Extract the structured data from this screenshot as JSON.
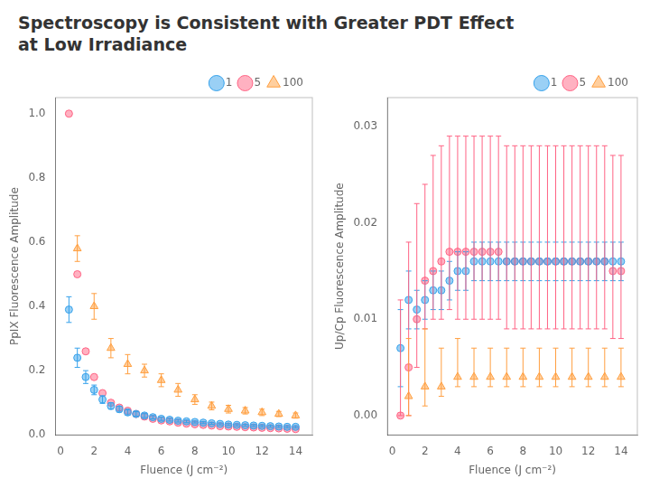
{
  "chart_data": [
    {
      "type": "scatter",
      "title": "Spectroscopy is Consistent with Greater PDT Effect\nat Low Irradiance",
      "x_label": "Fluence (J cm⁻²)",
      "y_label": "PpIX Fluorescence Amplitude",
      "xlim": [
        -0.3,
        15
      ],
      "xticks": [
        0,
        2,
        4,
        6,
        8,
        10,
        12,
        14
      ],
      "ylim": [
        0,
        1.05
      ],
      "yticks": [
        {
          "value": 0,
          "label": "0.0"
        },
        0.2,
        0.4,
        0.6,
        0.8,
        {
          "value": 1.0,
          "label": "1.0"
        }
      ],
      "grid": false,
      "legend": "upper right",
      "series": [
        {
          "name": "1",
          "marker": "circle",
          "x": [
            0.5,
            1.0,
            1.5,
            2.0,
            2.5,
            3.0,
            3.5,
            4.0,
            4.5,
            5.0,
            5.5,
            6.0,
            6.5,
            7.0,
            7.5,
            8.0,
            8.5,
            9.0,
            9.5,
            10.0,
            10.5,
            11.0,
            11.5,
            12.0,
            12.5,
            13.0,
            13.5,
            14.0
          ],
          "values": [
            0.39,
            0.24,
            0.18,
            0.14,
            0.11,
            0.09,
            0.08,
            0.07,
            0.065,
            0.06,
            0.055,
            0.05,
            0.047,
            0.044,
            0.042,
            0.04,
            0.038,
            0.036,
            0.034,
            0.032,
            0.031,
            0.03,
            0.029,
            0.028,
            0.027,
            0.026,
            0.025,
            0.025
          ],
          "yerr": [
            0.04,
            0.03,
            0.02,
            0.015,
            0.012,
            0.01,
            0.009,
            0.008,
            0.007,
            0.006,
            0.005,
            0.005,
            0.004,
            0.004,
            0.004,
            0.003,
            0.003,
            0.003,
            0.003,
            0.003,
            0.003,
            0.003,
            0.003,
            0.003,
            0.003,
            0.003,
            0.003,
            0.003
          ]
        },
        {
          "name": "5",
          "marker": "circle",
          "x": [
            0.5,
            1.0,
            1.5,
            2.0,
            2.5,
            3.0,
            3.5,
            4.0,
            4.5,
            5.0,
            5.5,
            6.0,
            6.5,
            7.0,
            7.5,
            8.0,
            8.5,
            9.0,
            9.5,
            10.0,
            10.5,
            11.0,
            11.5,
            12.0,
            12.5,
            13.0,
            13.5,
            14.0
          ],
          "values": [
            1.0,
            0.5,
            0.26,
            0.18,
            0.13,
            0.1,
            0.085,
            0.075,
            0.065,
            0.057,
            0.05,
            0.045,
            0.042,
            0.038,
            0.035,
            0.033,
            0.031,
            0.029,
            0.027,
            0.026,
            0.025,
            0.024,
            0.023,
            0.022,
            0.021,
            0.02,
            0.019,
            0.018
          ]
        },
        {
          "name": "100",
          "marker": "triangle",
          "x": [
            1.0,
            2.0,
            3.0,
            4.0,
            5.0,
            6.0,
            7.0,
            8.0,
            9.0,
            10.0,
            11.0,
            12.0,
            13.0,
            14.0
          ],
          "values": [
            0.58,
            0.4,
            0.27,
            0.22,
            0.2,
            0.17,
            0.14,
            0.11,
            0.09,
            0.08,
            0.075,
            0.07,
            0.065,
            0.06
          ],
          "yerr": [
            0.04,
            0.04,
            0.03,
            0.03,
            0.02,
            0.02,
            0.02,
            0.015,
            0.012,
            0.012,
            0.01,
            0.01,
            0.008,
            0.008
          ]
        }
      ]
    },
    {
      "type": "scatter",
      "x_label": "Fluence (J cm⁻²)",
      "y_label": "Up/Cp Fluorescence Amplitude",
      "xlim": [
        -0.3,
        15
      ],
      "xticks": [
        0,
        2,
        4,
        6,
        8,
        10,
        12,
        14
      ],
      "ylim": [
        -0.002,
        0.033
      ],
      "yticks": [
        {
          "value": 0,
          "label": "0.00"
        },
        0.01,
        0.02,
        0.03
      ],
      "grid": false,
      "legend": "upper right",
      "series": [
        {
          "name": "1",
          "marker": "circle",
          "x": [
            0.5,
            1.0,
            1.5,
            2.0,
            2.5,
            3.0,
            3.5,
            4.0,
            4.5,
            5.0,
            5.5,
            6.0,
            6.5,
            7.0,
            7.5,
            8.0,
            8.5,
            9.0,
            9.5,
            10.0,
            10.5,
            11.0,
            11.5,
            12.0,
            12.5,
            13.0,
            13.5,
            14.0
          ],
          "values": [
            0.007,
            0.012,
            0.011,
            0.012,
            0.013,
            0.013,
            0.014,
            0.015,
            0.015,
            0.016,
            0.016,
            0.016,
            0.016,
            0.016,
            0.016,
            0.016,
            0.016,
            0.016,
            0.016,
            0.016,
            0.016,
            0.016,
            0.016,
            0.016,
            0.016,
            0.016,
            0.016,
            0.016
          ],
          "yerr": [
            0.004,
            0.003,
            0.002,
            0.002,
            0.002,
            0.002,
            0.002,
            0.002,
            0.002,
            0.002,
            0.002,
            0.002,
            0.002,
            0.002,
            0.002,
            0.002,
            0.002,
            0.002,
            0.002,
            0.002,
            0.002,
            0.002,
            0.002,
            0.002,
            0.002,
            0.002,
            0.002,
            0.002
          ]
        },
        {
          "name": "5",
          "marker": "circle",
          "x": [
            0.5,
            1.0,
            1.5,
            2.0,
            2.5,
            3.0,
            3.5,
            4.0,
            4.5,
            5.0,
            5.5,
            6.0,
            6.5,
            7.0,
            7.5,
            8.0,
            8.5,
            9.0,
            9.5,
            10.0,
            10.5,
            11.0,
            11.5,
            12.0,
            12.5,
            13.0,
            13.5,
            14.0
          ],
          "values": [
            0.0,
            0.005,
            0.01,
            0.014,
            0.015,
            0.016,
            0.017,
            0.017,
            0.017,
            0.017,
            0.017,
            0.017,
            0.017,
            0.016,
            0.016,
            0.016,
            0.016,
            0.016,
            0.016,
            0.016,
            0.016,
            0.016,
            0.016,
            0.016,
            0.016,
            0.016,
            0.015,
            0.015
          ],
          "yerr_minus": [
            0.0,
            0.005,
            0.005,
            0.005,
            0.005,
            0.006,
            0.006,
            0.007,
            0.007,
            0.007,
            0.007,
            0.007,
            0.007,
            0.007,
            0.007,
            0.007,
            0.007,
            0.007,
            0.007,
            0.007,
            0.007,
            0.007,
            0.007,
            0.007,
            0.007,
            0.007,
            0.007,
            0.007
          ],
          "yerr_plus": [
            0.012,
            0.013,
            0.012,
            0.01,
            0.012,
            0.012,
            0.012,
            0.012,
            0.012,
            0.012,
            0.012,
            0.012,
            0.012,
            0.012,
            0.012,
            0.012,
            0.012,
            0.012,
            0.012,
            0.012,
            0.012,
            0.012,
            0.012,
            0.012,
            0.012,
            0.012,
            0.012,
            0.012
          ]
        },
        {
          "name": "100",
          "marker": "triangle",
          "x": [
            1.0,
            2.0,
            3.0,
            4.0,
            5.0,
            6.0,
            7.0,
            8.0,
            9.0,
            10.0,
            11.0,
            12.0,
            13.0,
            14.0
          ],
          "values": [
            0.002,
            0.003,
            0.003,
            0.004,
            0.004,
            0.004,
            0.004,
            0.004,
            0.004,
            0.004,
            0.004,
            0.004,
            0.004,
            0.004
          ],
          "yerr_minus": [
            0.002,
            0.002,
            0.001,
            0.001,
            0.001,
            0.001,
            0.001,
            0.001,
            0.001,
            0.001,
            0.001,
            0.001,
            0.001,
            0.001
          ],
          "yerr_plus": [
            0.006,
            0.006,
            0.004,
            0.004,
            0.003,
            0.003,
            0.003,
            0.003,
            0.003,
            0.003,
            0.003,
            0.003,
            0.003,
            0.003
          ]
        }
      ]
    }
  ]
}
